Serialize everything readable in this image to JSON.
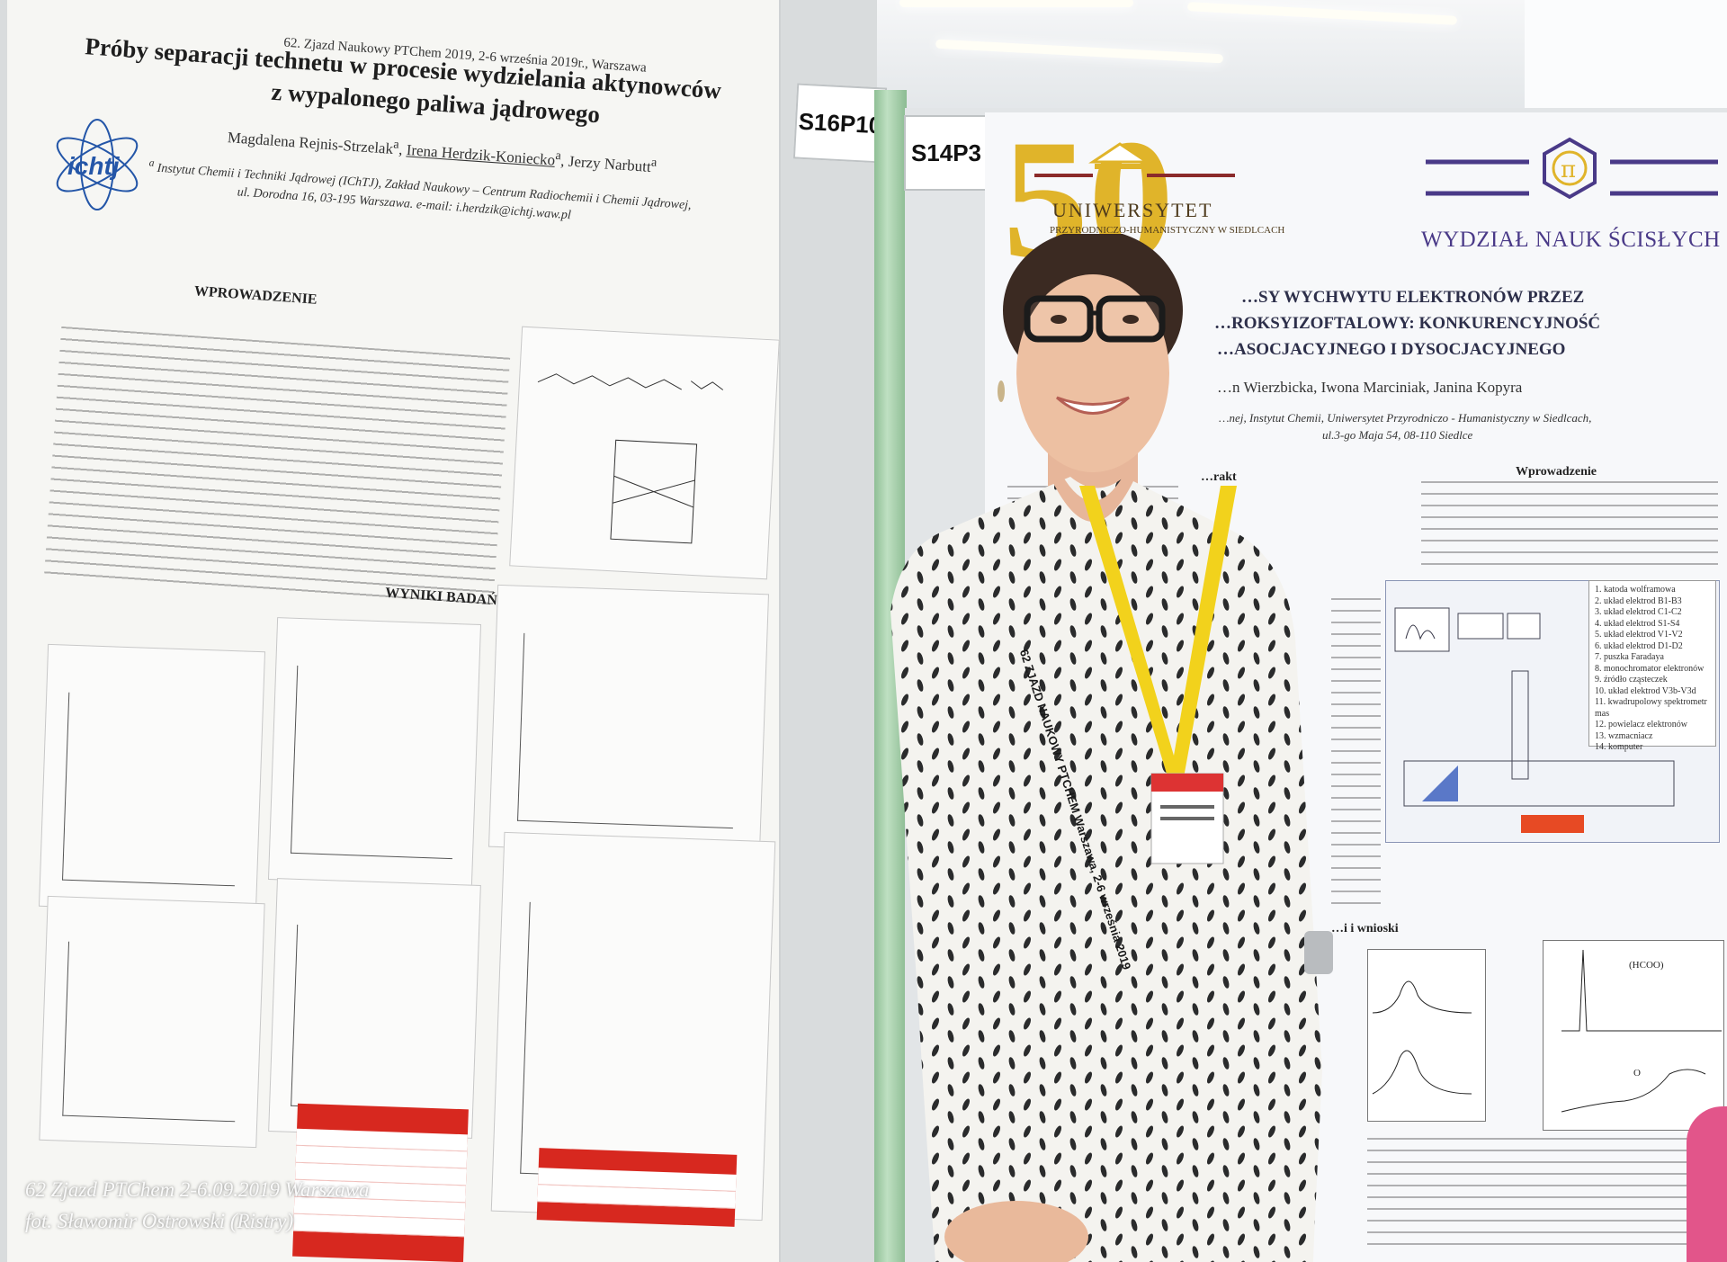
{
  "left_poster": {
    "conference": "62. Zjazd Naukowy PTChem 2019, 2-6 września 2019r., Warszawa",
    "title_line1": "Próby separacji technetu w procesie wydzielania aktynowców",
    "title_line2": "z wypalonego paliwa jądrowego",
    "author1": "Magdalena Rejnis-Strzelak",
    "author2": "Irena Herdzik-Koniecko",
    "author3": "Jerzy Narbutt",
    "affiliation_line1": "Instytut Chemii i Techniki Jądrowej (IChTJ), Zakład Naukowy – Centrum Radiochemii i Chemii Jądrowej,",
    "affiliation_line2": "ul. Dorodna 16, 03-195 Warszawa. e-mail: i.herdzik@ichtj.waw.pl",
    "logo_text": "ichtj",
    "section_intro": "WPROWADZENIE",
    "section_results": "WYNIKI BADAŃ",
    "stand_label": "S16P10"
  },
  "right_poster": {
    "stand_label": "S14P3",
    "jubilee_number": "50",
    "university_name": "UNIWERSYTET",
    "university_sub": "PRZYRODNICZO-HUMANISTYCZNY W SIEDLCACH",
    "faculty_symbol": "π",
    "faculty_name": "WYDZIAŁ NAUK ŚCISŁYCH",
    "title_line1": "…SY WYCHWYTU ELEKTRONÓW PRZEZ",
    "title_line2": "…ROKSYIZOFTALOWY: KONKURENCYJNOŚĆ",
    "title_line3": "…ASOCJACYJNEGO I DYSOCJACYJNEGO",
    "authors": "…n Wierzbicka, Iwona Marciniak, Janina Kopyra",
    "affiliation_line1": "…nej, Instytut Chemii, Uniwersytet Przyrodniczo - Humanistyczny w Siedlcach,",
    "affiliation_line2": "ul.3-go Maja 54, 08-110 Siedlce",
    "section_intro": "Wprowadzenie",
    "section_abstract": "…rakt",
    "section_conclusions": "…i i wnioski",
    "spectrum_label_top": "(HCOO)",
    "spectrum_label_bottom": "O",
    "legend": [
      "1. katoda wolframowa",
      "2. układ elektrod B1-B3",
      "3. układ elektrod C1-C2",
      "4. układ elektrod S1-S4",
      "5. układ elektrod V1-V2",
      "6. układ elektrod D1-D2",
      "7. puszka Faradaya",
      "8. monochromator elektronów",
      "9. źródło cząsteczek",
      "10. układ elektrod V3b-V3d",
      "11. kwadrupolowy spektrometr mas",
      "12. powielacz elektronów",
      "13. wzmacniacz",
      "14. komputer"
    ]
  },
  "lanyard_text": "62 ZJAZD NAUKOWY PTCHEM Warszawa, 2-6 września 2019",
  "watermark": {
    "line1": "62 Zjazd PTChem 2-6.09.2019 Warszawa",
    "line2": "fot. Sławomir Ostrowski (Ristry)"
  },
  "colors": {
    "logo_gold": "#e0b42a",
    "faculty_purple": "#4a3a88",
    "lanyard_yellow": "#f2d21c",
    "table_red": "#d7281f",
    "pole_green": "#a9d1ad"
  }
}
